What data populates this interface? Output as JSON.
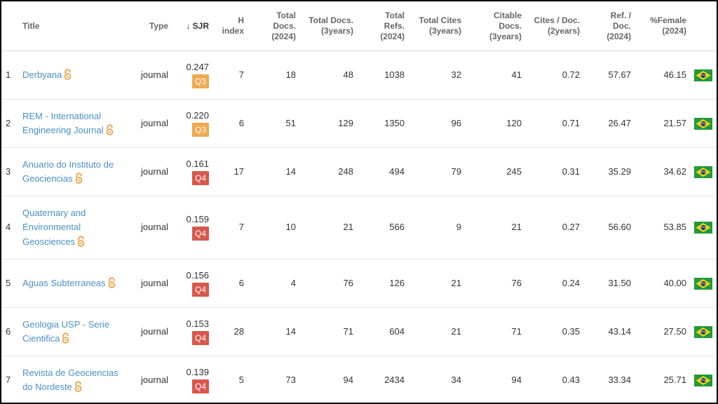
{
  "headers": {
    "title": "Title",
    "type": "Type",
    "sjr": "SJR",
    "sort_arrow": "↓",
    "h_index": [
      "H",
      "index"
    ],
    "total_docs_2024": [
      "Total",
      "Docs.",
      "(2024)"
    ],
    "total_docs_3y": [
      "Total Docs.",
      "(3years)"
    ],
    "total_refs": [
      "Total",
      "Refs.",
      "(2024)"
    ],
    "total_cites": [
      "Total Cites",
      "(3years)"
    ],
    "citable_docs": [
      "Citable",
      "Docs.",
      "(3years)"
    ],
    "cites_per_doc": [
      "Cites / Doc.",
      "(2years)"
    ],
    "ref_per_doc": [
      "Ref. /",
      "Doc.",
      "(2024)"
    ],
    "female": [
      "%Female",
      "(2024)"
    ]
  },
  "colors": {
    "link": "#4a8fc7",
    "q3": "#f0a950",
    "q4": "#d8574c",
    "open_access": "#f0a040"
  },
  "rows": [
    {
      "idx": "1",
      "title": [
        "Derbyana"
      ],
      "type": "journal",
      "sjr": "0.247",
      "quartile": "Q3",
      "h": "7",
      "docs2024": "18",
      "docs3y": "48",
      "refs": "1038",
      "cites": "32",
      "citable": "41",
      "cpd": "0.72",
      "rpd": "57.67",
      "female": "46.15",
      "flag": "brazil-flag-icon"
    },
    {
      "idx": "2",
      "title": [
        "REM - International",
        "Engineering Journal"
      ],
      "type": "journal",
      "sjr": "0.220",
      "quartile": "Q3",
      "h": "6",
      "docs2024": "51",
      "docs3y": "129",
      "refs": "1350",
      "cites": "96",
      "citable": "120",
      "cpd": "0.71",
      "rpd": "26.47",
      "female": "21.57",
      "flag": "brazil-flag-icon"
    },
    {
      "idx": "3",
      "title": [
        "Anuario do Instituto de",
        "Geociencias"
      ],
      "type": "journal",
      "sjr": "0.161",
      "quartile": "Q4",
      "h": "17",
      "docs2024": "14",
      "docs3y": "248",
      "refs": "494",
      "cites": "79",
      "citable": "245",
      "cpd": "0.31",
      "rpd": "35.29",
      "female": "34.62",
      "flag": "brazil-flag-icon"
    },
    {
      "idx": "4",
      "title": [
        "Quaternary and",
        "Environmental",
        "Geosciences"
      ],
      "type": "journal",
      "sjr": "0.159",
      "quartile": "Q4",
      "h": "7",
      "docs2024": "10",
      "docs3y": "21",
      "refs": "566",
      "cites": "9",
      "citable": "21",
      "cpd": "0.27",
      "rpd": "56.60",
      "female": "53.85",
      "flag": "brazil-flag-icon"
    },
    {
      "idx": "5",
      "title": [
        "Aguas Subterraneas"
      ],
      "type": "journal",
      "sjr": "0.156",
      "quartile": "Q4",
      "h": "6",
      "docs2024": "4",
      "docs3y": "76",
      "refs": "126",
      "cites": "21",
      "citable": "76",
      "cpd": "0.24",
      "rpd": "31.50",
      "female": "40.00",
      "flag": "brazil-flag-icon"
    },
    {
      "idx": "6",
      "title": [
        "Geologia USP - Serie",
        "Cientifica"
      ],
      "type": "journal",
      "sjr": "0.153",
      "quartile": "Q4",
      "h": "28",
      "docs2024": "14",
      "docs3y": "71",
      "refs": "604",
      "cites": "21",
      "citable": "71",
      "cpd": "0.35",
      "rpd": "43.14",
      "female": "27.50",
      "flag": "brazil-flag-icon"
    },
    {
      "idx": "7",
      "title": [
        "Revista de Geociencias",
        "do Nordeste"
      ],
      "type": "journal",
      "sjr": "0.139",
      "quartile": "Q4",
      "h": "5",
      "docs2024": "73",
      "docs3y": "94",
      "refs": "2434",
      "cites": "34",
      "citable": "94",
      "cpd": "0.43",
      "rpd": "33.34",
      "female": "25.71",
      "flag": "brazil-flag-icon"
    }
  ]
}
